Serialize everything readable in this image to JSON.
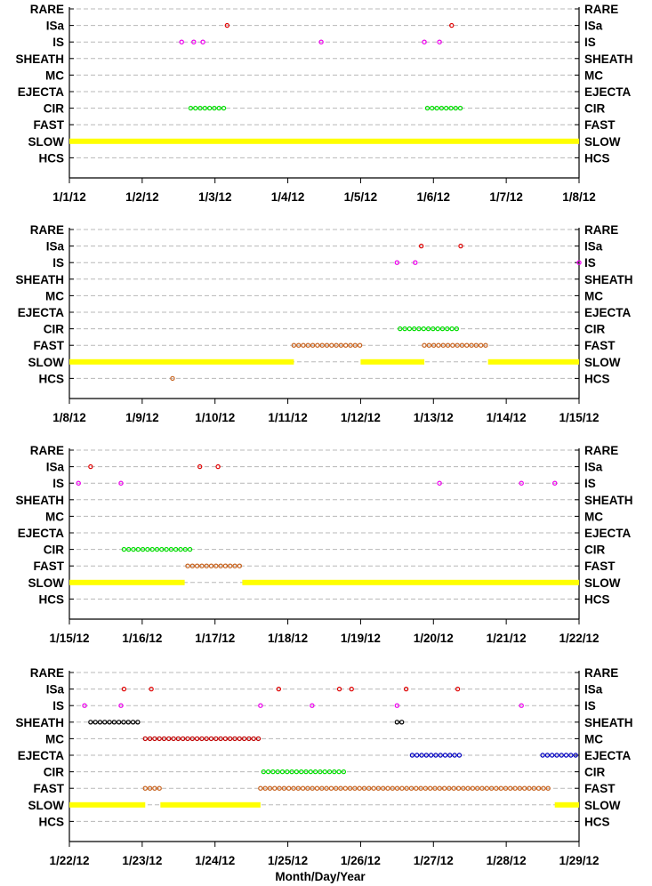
{
  "xlabel": "Month/Day/Year",
  "categories": [
    "RARE",
    "ISa",
    "IS",
    "SHEATH",
    "MC",
    "EJECTA",
    "CIR",
    "FAST",
    "SLOW",
    "HCS"
  ],
  "colors": {
    "ISa": "#e00000",
    "IS": "#ee00ee",
    "SHEATH": "#000000",
    "MC": "#c00000",
    "EJECTA": "#0000c0",
    "CIR": "#00dd00",
    "FAST": "#c86420",
    "SLOW": "#ffff00",
    "HCS": "#c86420"
  },
  "chart_data": [
    {
      "type": "scatter",
      "xlim": [
        "2012-01-01",
        "2012-01-08"
      ],
      "tick_labels": [
        "1/1/12",
        "1/2/12",
        "1/3/12",
        "1/4/12",
        "1/5/12",
        "1/6/12",
        "1/7/12",
        "1/8/12"
      ],
      "series": [
        {
          "name": "SLOW",
          "intervals": [
            [
              "2012-01-01 00:00",
              "2012-01-08 00:00"
            ]
          ]
        },
        {
          "name": "CIR",
          "intervals": [
            [
              "2012-01-02 16:00",
              "2012-01-03 04:00"
            ],
            [
              "2012-01-05 22:00",
              "2012-01-06 10:00"
            ]
          ]
        },
        {
          "name": "IS",
          "points": [
            "2012-01-02 13:00",
            "2012-01-02 17:00",
            "2012-01-02 20:00",
            "2012-01-04 11:00",
            "2012-01-05 21:00",
            "2012-01-06 02:00"
          ]
        },
        {
          "name": "ISa",
          "points": [
            "2012-01-03 04:00",
            "2012-01-06 06:00"
          ]
        }
      ]
    },
    {
      "type": "scatter",
      "xlim": [
        "2012-01-08",
        "2012-01-15"
      ],
      "tick_labels": [
        "1/8/12",
        "1/9/12",
        "1/10/12",
        "1/11/12",
        "1/12/12",
        "1/13/12",
        "1/14/12",
        "1/15/12"
      ],
      "series": [
        {
          "name": "SLOW",
          "intervals": [
            [
              "2012-01-08 00:00",
              "2012-01-11 02:00"
            ],
            [
              "2012-01-12 00:00",
              "2012-01-12 21:00"
            ],
            [
              "2012-01-13 18:00",
              "2012-01-15 00:00"
            ]
          ]
        },
        {
          "name": "FAST",
          "intervals": [
            [
              "2012-01-11 02:00",
              "2012-01-12 00:00"
            ],
            [
              "2012-01-12 21:00",
              "2012-01-13 18:00"
            ]
          ]
        },
        {
          "name": "CIR",
          "intervals": [
            [
              "2012-01-12 13:00",
              "2012-01-13 08:00"
            ]
          ]
        },
        {
          "name": "HCS",
          "points": [
            "2012-01-09 10:00"
          ]
        },
        {
          "name": "IS",
          "points": [
            "2012-01-12 12:00",
            "2012-01-12 18:00",
            "2012-01-15 00:00"
          ]
        },
        {
          "name": "ISa",
          "points": [
            "2012-01-12 20:00",
            "2012-01-13 09:00"
          ]
        }
      ]
    },
    {
      "type": "scatter",
      "xlim": [
        "2012-01-15",
        "2012-01-22"
      ],
      "tick_labels": [
        "1/15/12",
        "1/16/12",
        "1/17/12",
        "1/18/12",
        "1/19/12",
        "1/20/12",
        "1/21/12",
        "1/22/12"
      ],
      "series": [
        {
          "name": "SLOW",
          "intervals": [
            [
              "2012-01-15 00:00",
              "2012-01-16 14:00"
            ],
            [
              "2012-01-17 09:00",
              "2012-01-22 00:00"
            ]
          ]
        },
        {
          "name": "FAST",
          "intervals": [
            [
              "2012-01-16 15:00",
              "2012-01-17 09:00"
            ]
          ]
        },
        {
          "name": "CIR",
          "intervals": [
            [
              "2012-01-15 18:00",
              "2012-01-16 16:00"
            ]
          ]
        },
        {
          "name": "IS",
          "points": [
            "2012-01-15 03:00",
            "2012-01-15 17:00",
            "2012-01-20 02:00",
            "2012-01-21 05:00",
            "2012-01-21 16:00"
          ]
        },
        {
          "name": "ISa",
          "points": [
            "2012-01-15 07:00",
            "2012-01-16 19:00",
            "2012-01-17 01:00"
          ]
        }
      ]
    },
    {
      "type": "scatter",
      "xlim": [
        "2012-01-22",
        "2012-01-29"
      ],
      "tick_labels": [
        "1/22/12",
        "1/23/12",
        "1/24/12",
        "1/25/12",
        "1/26/12",
        "1/27/12",
        "1/28/12",
        "1/29/12"
      ],
      "series": [
        {
          "name": "SLOW",
          "intervals": [
            [
              "2012-01-22 00:00",
              "2012-01-23 01:00"
            ],
            [
              "2012-01-23 06:00",
              "2012-01-24 15:00"
            ],
            [
              "2012-01-28 16:00",
              "2012-01-29 00:00"
            ]
          ]
        },
        {
          "name": "FAST",
          "intervals": [
            [
              "2012-01-23 01:00",
              "2012-01-23 06:00"
            ],
            [
              "2012-01-24 15:00",
              "2012-01-28 15:00"
            ]
          ]
        },
        {
          "name": "CIR",
          "intervals": [
            [
              "2012-01-24 16:00",
              "2012-01-25 19:00"
            ]
          ]
        },
        {
          "name": "EJECTA",
          "intervals": [
            [
              "2012-01-26 17:00",
              "2012-01-27 09:00"
            ],
            [
              "2012-01-28 12:00",
              "2012-01-28 23:00"
            ]
          ]
        },
        {
          "name": "MC",
          "intervals": [
            [
              "2012-01-23 01:00",
              "2012-01-24 15:00"
            ]
          ]
        },
        {
          "name": "SHEATH",
          "intervals": [
            [
              "2012-01-22 07:00",
              "2012-01-23 00:00"
            ],
            [
              "2012-01-26 12:00",
              "2012-01-26 15:00"
            ]
          ]
        },
        {
          "name": "IS",
          "points": [
            "2012-01-22 05:00",
            "2012-01-22 17:00",
            "2012-01-24 15:00",
            "2012-01-25 08:00",
            "2012-01-26 12:00",
            "2012-01-28 05:00"
          ]
        },
        {
          "name": "ISa",
          "points": [
            "2012-01-22 18:00",
            "2012-01-23 03:00",
            "2012-01-24 21:00",
            "2012-01-25 17:00",
            "2012-01-25 21:00",
            "2012-01-26 15:00",
            "2012-01-27 08:00"
          ]
        }
      ]
    }
  ]
}
